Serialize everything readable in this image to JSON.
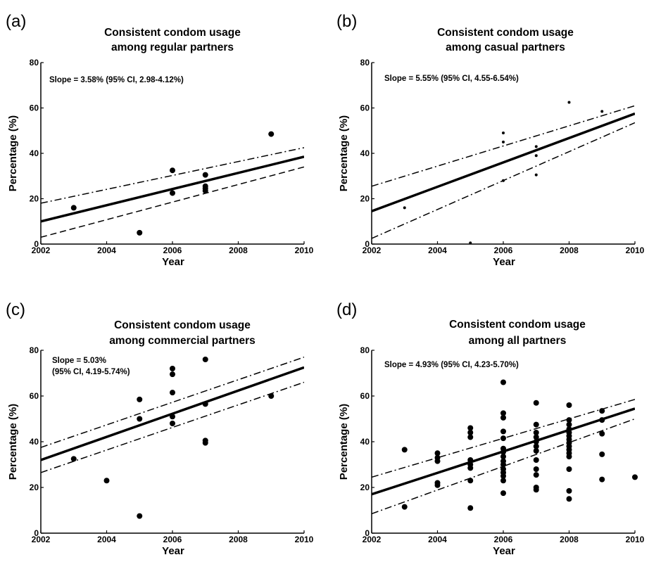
{
  "chart_data": [
    {
      "panel": "(a)",
      "type": "scatter",
      "title": [
        "Consistent condom usage",
        "among regular partners"
      ],
      "xlabel": "Year",
      "ylabel": "Percentage (%)",
      "xlim": [
        2002,
        2010
      ],
      "ylim": [
        0,
        80
      ],
      "xticks": [
        2002,
        2004,
        2006,
        2008,
        2010
      ],
      "yticks": [
        0,
        20,
        40,
        60,
        80
      ],
      "annotation": [
        "Slope = 3.58% (95% CI, 2.98-4.12%)"
      ],
      "points": [
        [
          2003,
          16
        ],
        [
          2005,
          5
        ],
        [
          2006,
          32.5
        ],
        [
          2006,
          22.5
        ],
        [
          2007,
          30.5
        ],
        [
          2007,
          25.5
        ],
        [
          2007,
          24.5
        ],
        [
          2007,
          23.5
        ],
        [
          2009,
          48.5
        ]
      ],
      "point_style": "dot",
      "fit": [
        [
          2002,
          10
        ],
        [
          2010,
          38.5
        ]
      ],
      "ci_upper": [
        [
          2002,
          18
        ],
        [
          2010,
          42.5
        ]
      ],
      "ci_lower": [
        [
          2002,
          3
        ],
        [
          2010,
          34
        ]
      ],
      "ci_upper_style": "dashdot",
      "ci_lower_style": "dash"
    },
    {
      "panel": "(b)",
      "type": "scatter",
      "title": [
        "Consistent condom usage",
        "among casual partners"
      ],
      "xlabel": "Year",
      "ylabel": "Percentage (%)",
      "xlim": [
        2002,
        2010
      ],
      "ylim": [
        0,
        80
      ],
      "xticks": [
        2002,
        2004,
        2006,
        2008,
        2010
      ],
      "yticks": [
        0,
        20,
        40,
        60,
        80
      ],
      "annotation": [
        "Slope = 5.55% (95% CI, 4.55-6.54%)"
      ],
      "points": [
        [
          2003,
          16
        ],
        [
          2005,
          0.5
        ],
        [
          2006,
          49
        ],
        [
          2006,
          45
        ],
        [
          2006,
          28
        ],
        [
          2007,
          43
        ],
        [
          2007,
          39
        ],
        [
          2007,
          30.5
        ],
        [
          2008,
          62.5
        ],
        [
          2009,
          58.5
        ]
      ],
      "point_style": "small",
      "fit": [
        [
          2002,
          14.5
        ],
        [
          2010,
          57.5
        ]
      ],
      "ci_upper": [
        [
          2002,
          25.5
        ],
        [
          2010,
          61
        ]
      ],
      "ci_lower": [
        [
          2002,
          2.5
        ],
        [
          2010,
          53.5
        ]
      ],
      "ci_upper_style": "dashdot",
      "ci_lower_style": "dashdot"
    },
    {
      "panel": "(c)",
      "type": "scatter",
      "title": [
        "Consistent condom usage",
        "among commercial partners"
      ],
      "xlabel": "Year",
      "ylabel": "Percentage (%)",
      "xlim": [
        2002,
        2010
      ],
      "ylim": [
        0,
        80
      ],
      "xticks": [
        2002,
        2004,
        2006,
        2008,
        2010
      ],
      "yticks": [
        0,
        20,
        40,
        60,
        80
      ],
      "annotation": [
        "Slope = 5.03%",
        "(95% CI, 4.19-5.74%)"
      ],
      "points": [
        [
          2003,
          32.5
        ],
        [
          2004,
          23
        ],
        [
          2005,
          58.5
        ],
        [
          2005,
          50
        ],
        [
          2005,
          7.5
        ],
        [
          2006,
          72
        ],
        [
          2006,
          69.5
        ],
        [
          2006,
          61.5
        ],
        [
          2006,
          51
        ],
        [
          2006,
          48
        ],
        [
          2007,
          76
        ],
        [
          2007,
          56.5
        ],
        [
          2007,
          40.5
        ],
        [
          2007,
          39.5
        ],
        [
          2009,
          60
        ]
      ],
      "point_style": "dot",
      "fit": [
        [
          2002,
          32
        ],
        [
          2010,
          72.5
        ]
      ],
      "ci_upper": [
        [
          2002,
          37.5
        ],
        [
          2010,
          77
        ]
      ],
      "ci_lower": [
        [
          2002,
          26.5
        ],
        [
          2010,
          66
        ]
      ],
      "ci_upper_style": "dashdot",
      "ci_lower_style": "dashdot"
    },
    {
      "panel": "(d)",
      "type": "scatter",
      "title": [
        "Consistent condom usage",
        "among all partners"
      ],
      "xlabel": "Year",
      "ylabel": "Percentage (%)",
      "xlim": [
        2002,
        2010
      ],
      "ylim": [
        0,
        80
      ],
      "xticks": [
        2002,
        2004,
        2006,
        2008,
        2010
      ],
      "yticks": [
        0,
        20,
        40,
        60,
        80
      ],
      "annotation": [
        "Slope = 4.93% (95% CI, 4.23-5.70%)"
      ],
      "points": [
        [
          2003,
          36.5
        ],
        [
          2003,
          11.5
        ],
        [
          2004,
          35
        ],
        [
          2004,
          33
        ],
        [
          2004,
          31.5
        ],
        [
          2004,
          22
        ],
        [
          2004,
          21
        ],
        [
          2005,
          46
        ],
        [
          2005,
          44
        ],
        [
          2005,
          42
        ],
        [
          2005,
          32
        ],
        [
          2005,
          30
        ],
        [
          2005,
          28.5
        ],
        [
          2005,
          23
        ],
        [
          2005,
          11
        ],
        [
          2006,
          66
        ],
        [
          2006,
          52.5
        ],
        [
          2006,
          50.5
        ],
        [
          2006,
          44.5
        ],
        [
          2006,
          41.5
        ],
        [
          2006,
          37
        ],
        [
          2006,
          35.5
        ],
        [
          2006,
          33.5
        ],
        [
          2006,
          31.5
        ],
        [
          2006,
          30
        ],
        [
          2006,
          28
        ],
        [
          2006,
          26.5
        ],
        [
          2006,
          25
        ],
        [
          2006,
          23
        ],
        [
          2006,
          17.5
        ],
        [
          2007,
          57
        ],
        [
          2007,
          47.5
        ],
        [
          2007,
          44
        ],
        [
          2007,
          42
        ],
        [
          2007,
          40
        ],
        [
          2007,
          38
        ],
        [
          2007,
          36
        ],
        [
          2007,
          32
        ],
        [
          2007,
          28
        ],
        [
          2007,
          25.5
        ],
        [
          2007,
          20
        ],
        [
          2007,
          19
        ],
        [
          2008,
          56
        ],
        [
          2008,
          49.5
        ],
        [
          2008,
          47.5
        ],
        [
          2008,
          45.5
        ],
        [
          2008,
          44
        ],
        [
          2008,
          42.5
        ],
        [
          2008,
          41
        ],
        [
          2008,
          39.5
        ],
        [
          2008,
          38
        ],
        [
          2008,
          36.5
        ],
        [
          2008,
          35
        ],
        [
          2008,
          33.5
        ],
        [
          2008,
          28
        ],
        [
          2008,
          18.5
        ],
        [
          2008,
          15
        ],
        [
          2009,
          53.5
        ],
        [
          2009,
          49.5
        ],
        [
          2009,
          43.5
        ],
        [
          2009,
          34.5
        ],
        [
          2009,
          23.5
        ],
        [
          2010,
          24.5
        ]
      ],
      "point_style": "dot",
      "fit": [
        [
          2002,
          17
        ],
        [
          2010,
          54.5
        ]
      ],
      "ci_upper": [
        [
          2002,
          24.5
        ],
        [
          2010,
          58.5
        ]
      ],
      "ci_lower": [
        [
          2002,
          8.5
        ],
        [
          2010,
          50
        ]
      ],
      "ci_upper_style": "dashdot",
      "ci_lower_style": "dashdot"
    }
  ]
}
